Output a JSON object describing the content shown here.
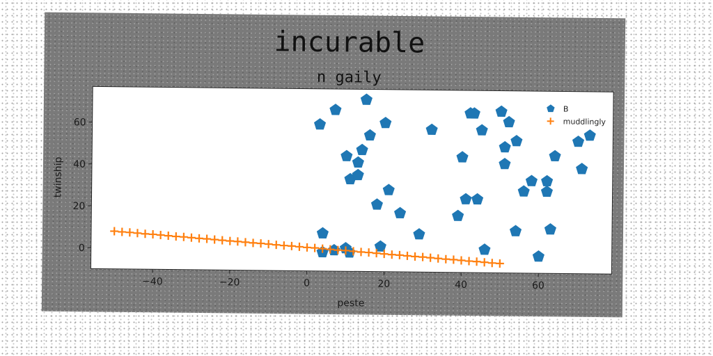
{
  "chart_data": {
    "type": "scatter",
    "title": "incurable",
    "subtitle": "n gaily",
    "xlabel": "peste",
    "ylabel": "twinship",
    "xlim": [
      -56,
      79
    ],
    "ylim": [
      -10,
      77
    ],
    "xticks": [
      -40,
      -20,
      0,
      20,
      40,
      60
    ],
    "yticks": [
      0,
      20,
      40,
      60
    ],
    "grid": false,
    "legend_position": "top-right",
    "series": [
      {
        "name": "B",
        "marker": "pentagon",
        "color": "#1f77b4",
        "points": [
          [
            3,
            60
          ],
          [
            7,
            67
          ],
          [
            10,
            45
          ],
          [
            11,
            34
          ],
          [
            13,
            36
          ],
          [
            13,
            42
          ],
          [
            14,
            48
          ],
          [
            15,
            72
          ],
          [
            16,
            55
          ],
          [
            18,
            22
          ],
          [
            20,
            61
          ],
          [
            21,
            29
          ],
          [
            24,
            18
          ],
          [
            32,
            58
          ],
          [
            39,
            17
          ],
          [
            40,
            45
          ],
          [
            41,
            25
          ],
          [
            42,
            66
          ],
          [
            43,
            66
          ],
          [
            44,
            25
          ],
          [
            45,
            58
          ],
          [
            50,
            67
          ],
          [
            51,
            50
          ],
          [
            51,
            42
          ],
          [
            52,
            62
          ],
          [
            54,
            53
          ],
          [
            54,
            10
          ],
          [
            56,
            29
          ],
          [
            58,
            34
          ],
          [
            60,
            -2
          ],
          [
            62,
            34
          ],
          [
            62,
            29
          ],
          [
            63,
            11
          ],
          [
            64,
            46
          ],
          [
            70,
            53
          ],
          [
            71,
            40
          ],
          [
            73,
            56
          ],
          [
            4,
            8
          ],
          [
            4,
            -1
          ],
          [
            7,
            0
          ],
          [
            10,
            1
          ],
          [
            11,
            -1
          ],
          [
            19,
            2
          ],
          [
            29,
            8
          ],
          [
            46,
            1
          ]
        ]
      },
      {
        "name": "muddlingly",
        "marker": "plus",
        "color": "#ff7f0e",
        "x_start": -50,
        "x_step": 2,
        "y_values": [
          8.0,
          7.7,
          7.5,
          7.2,
          6.9,
          6.7,
          6.4,
          6.1,
          5.8,
          5.6,
          5.3,
          5.0,
          4.8,
          4.5,
          4.2,
          3.9,
          3.7,
          3.4,
          3.1,
          2.9,
          2.6,
          2.3,
          2.0,
          1.8,
          1.5,
          1.2,
          1.0,
          0.7,
          0.4,
          0.1,
          -0.1,
          -0.4,
          -0.7,
          -0.9,
          -1.2,
          -1.5,
          -1.8,
          -2.0,
          -2.3,
          -2.6,
          -2.8,
          -3.1,
          -3.4,
          -3.7,
          -3.9,
          -4.2,
          -4.5,
          -4.7,
          -5.0,
          -5.3,
          -5.5
        ]
      }
    ]
  }
}
